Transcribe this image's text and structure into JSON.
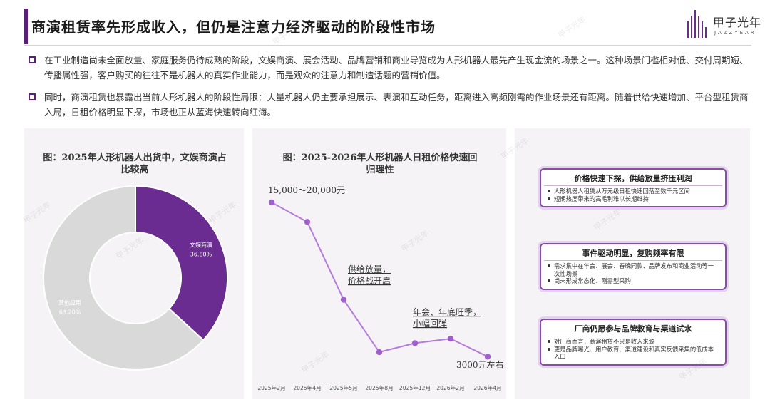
{
  "page": {
    "title": "商演租赁率先形成收入，但仍是注意力经济驱动的阶段性市场"
  },
  "logo": {
    "name": "甲子光年",
    "sub": "JAZZYEAR"
  },
  "bullets": [
    "在工业制造尚未全面放量、家庭服务仍待成熟的阶段，文娱商演、展会活动、品牌营销和商业导览成为人形机器人最先产生现金流的场景之一。这种场景门槛相对低、交付周期短、传播属性强，客户购买的往往不是机器人的真实作业能力，而是观众的注意力和制造话题的营销价值。",
    "同时，商演租赁也暴露出当前人形机器人的阶段性局限：大量机器人仍主要承担展示、表演和互动任务，距离进入高频刚需的作业场景还有距离。随着供给快速增加、平台型租赁商入局，日租价格明显下探，市场也正从蓝海快速转向红海。"
  ],
  "charts": {
    "pie_title": "图：2025年人形机器人出货中，文娱商演占比较高",
    "line_title": "图：2025-2026年人形机器人日租价格快速回归理性"
  },
  "chart_data": [
    {
      "type": "pie",
      "title": "图：2025年人形机器人出货中，文娱商演占比较高",
      "categories": [
        "文娱商演",
        "其他应用"
      ],
      "values": [
        36.8,
        63.2
      ],
      "value_labels": [
        "36.80%",
        "63.20%"
      ],
      "colors": [
        "#6a2c91",
        "#d9d9d9"
      ]
    },
    {
      "type": "line",
      "title": "图：2025-2026年人形机器人日租价格快速回归理性",
      "x": [
        "2025年2月",
        "2025年4月",
        "2025年5月",
        "2025年8月",
        "2025年12月",
        "2026年2月",
        "2026年4月"
      ],
      "y_relative": [
        1.0,
        0.87,
        0.35,
        0.0,
        0.06,
        0.09,
        -0.03
      ],
      "annotations": [
        "15,000～20,000元",
        "供给放量，价格战开启",
        "年会、年底旺季，小幅回弹",
        "3000元左右"
      ],
      "line_color": "#b57bdb"
    }
  ],
  "cards": [
    {
      "heading": "价格快速下探，供给放量挤压利润",
      "items": [
        "人形机器人租赁从万元级日租快速回落至数千元区间",
        "短期热度带来的高毛利难以长期维持"
      ]
    },
    {
      "heading": "事件驱动明显，复购频率有限",
      "items": [
        "需求集中在年会、展会、春晚同款、品牌发布和商业活动等一次性场景",
        "尚未形成常态化、刚需型采购"
      ]
    },
    {
      "heading": "厂商仍愿参与品牌教育与渠道试水",
      "items": [
        "对厂商而言，商演租赁不只是收入来源",
        "更是品牌曝光、用户教育、渠道建设和真实反馈采集的低成本入口"
      ]
    }
  ],
  "watermark": "甲子光年"
}
